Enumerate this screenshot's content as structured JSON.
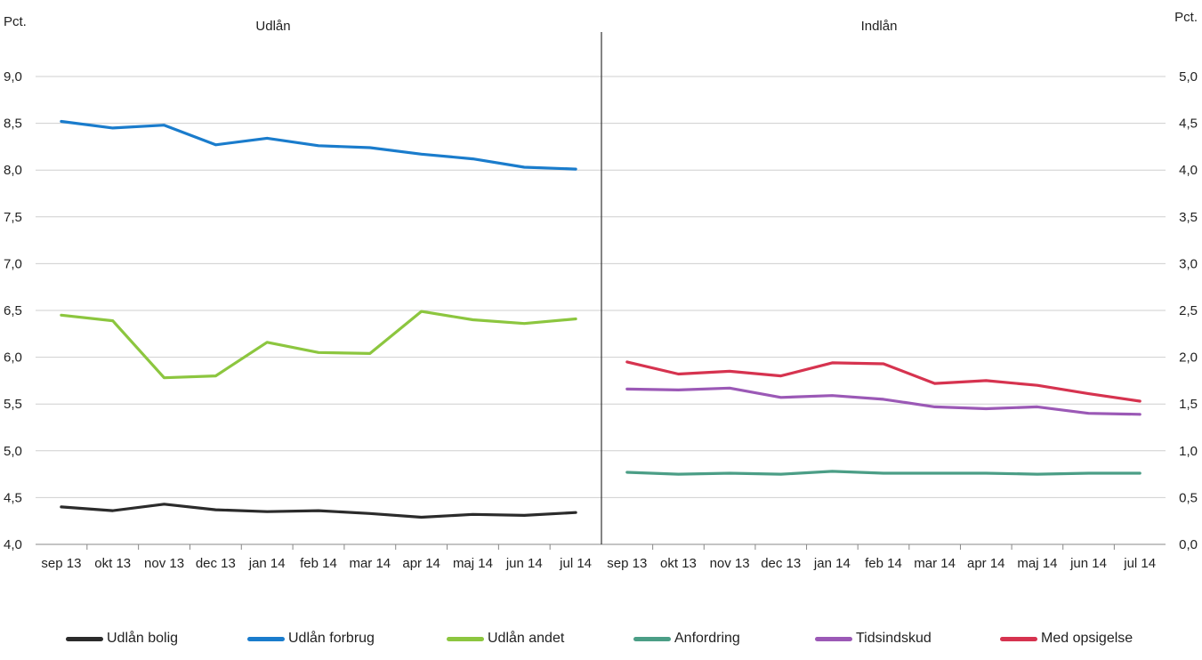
{
  "chart_data": [
    {
      "type": "line",
      "title": "Udlån",
      "ylabel": "Pct.",
      "ylim": [
        4.0,
        9.0
      ],
      "yticks": [
        "4,0",
        "4,5",
        "5,0",
        "5,5",
        "6,0",
        "6,5",
        "7,0",
        "7,5",
        "8,0",
        "8,5",
        "9,0"
      ],
      "categories": [
        "sep 13",
        "okt 13",
        "nov 13",
        "dec 13",
        "jan 14",
        "feb 14",
        "mar 14",
        "apr 14",
        "maj 14",
        "jun 14",
        "jul 14"
      ],
      "grid": true,
      "series": [
        {
          "name": "Udlån bolig",
          "color": "#2b2b2b",
          "values": [
            4.4,
            4.36,
            4.43,
            4.37,
            4.35,
            4.36,
            4.33,
            4.29,
            4.32,
            4.31,
            4.34
          ]
        },
        {
          "name": "Udlån forbrug",
          "color": "#1a7ccc",
          "values": [
            8.52,
            8.45,
            8.48,
            8.27,
            8.34,
            8.26,
            8.24,
            8.17,
            8.12,
            8.03,
            8.01
          ]
        },
        {
          "name": "Udlån andet",
          "color": "#8cc63f",
          "values": [
            6.45,
            6.39,
            5.78,
            5.8,
            6.16,
            6.05,
            6.04,
            6.49,
            6.4,
            6.36,
            6.41
          ]
        }
      ]
    },
    {
      "type": "line",
      "title": "Indlån",
      "ylabel": "Pct.",
      "ylim": [
        0.0,
        5.0
      ],
      "yticks": [
        "0,0",
        "0,5",
        "1,0",
        "1,5",
        "2,0",
        "2,5",
        "3,0",
        "3,5",
        "4,0",
        "4,5",
        "5,0"
      ],
      "categories": [
        "sep 13",
        "okt 13",
        "nov 13",
        "dec 13",
        "jan 14",
        "feb 14",
        "mar 14",
        "apr 14",
        "maj 14",
        "jun 14",
        "jul 14"
      ],
      "grid": true,
      "series": [
        {
          "name": "Anfordring",
          "color": "#4b9e86",
          "values": [
            0.77,
            0.75,
            0.76,
            0.75,
            0.78,
            0.76,
            0.76,
            0.76,
            0.75,
            0.76,
            0.76
          ]
        },
        {
          "name": "Tidsindskud",
          "color": "#9b59b6",
          "values": [
            1.66,
            1.65,
            1.67,
            1.57,
            1.59,
            1.55,
            1.47,
            1.45,
            1.47,
            1.4,
            1.39
          ]
        },
        {
          "name": "Med opsigelse",
          "color": "#d6334f",
          "values": [
            1.95,
            1.82,
            1.85,
            1.8,
            1.94,
            1.93,
            1.72,
            1.75,
            1.7,
            1.61,
            1.53
          ]
        }
      ]
    }
  ],
  "legend": [
    {
      "label": "Udlån bolig",
      "color": "#2b2b2b"
    },
    {
      "label": "Udlån forbrug",
      "color": "#1a7ccc"
    },
    {
      "label": "Udlån andet",
      "color": "#8cc63f"
    },
    {
      "label": "Anfordring",
      "color": "#4b9e86"
    },
    {
      "label": "Tidsindskud",
      "color": "#9b59b6"
    },
    {
      "label": "Med opsigelse",
      "color": "#d6334f"
    }
  ]
}
